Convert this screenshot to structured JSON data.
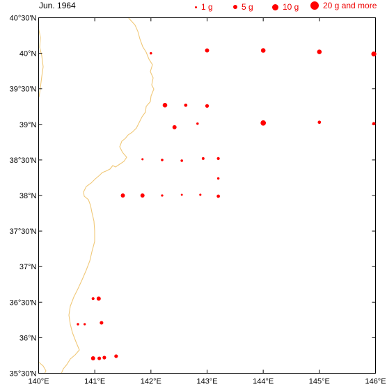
{
  "title": "Jun. 1964",
  "legend": [
    {
      "label": "1 g",
      "value": 1
    },
    {
      "label": "5 g",
      "value": 5
    },
    {
      "label": "10 g",
      "value": 10
    },
    {
      "label": "20 g and more",
      "value": 20
    }
  ],
  "colors": {
    "marker": "#ff0000",
    "coast": "#f0c878",
    "frame": "#000000",
    "legend_text": "#ee0000"
  },
  "chart_data": {
    "type": "scatter",
    "xlim": [
      140,
      146
    ],
    "ylim": [
      35.5,
      40.5
    ],
    "x_ticks": [
      "140°E",
      "141°E",
      "142°E",
      "143°E",
      "144°E",
      "145°E",
      "146°E"
    ],
    "y_ticks": [
      "35°30'N",
      "36°N",
      "36°30'N",
      "37°N",
      "37°30'N",
      "38°N",
      "38°30'N",
      "39°N",
      "39°30'N",
      "40°N",
      "40°30'N"
    ],
    "points": [
      {
        "lon": 142.0,
        "lat": 40.0,
        "value": 0.5
      },
      {
        "lon": 143.0,
        "lat": 40.04,
        "value": 3
      },
      {
        "lon": 144.0,
        "lat": 40.04,
        "value": 4
      },
      {
        "lon": 145.0,
        "lat": 40.02,
        "value": 4
      },
      {
        "lon": 145.97,
        "lat": 39.99,
        "value": 5
      },
      {
        "lon": 142.25,
        "lat": 39.27,
        "value": 4
      },
      {
        "lon": 142.62,
        "lat": 39.27,
        "value": 1.5
      },
      {
        "lon": 143.0,
        "lat": 39.26,
        "value": 2
      },
      {
        "lon": 142.42,
        "lat": 38.96,
        "value": 3
      },
      {
        "lon": 142.83,
        "lat": 39.01,
        "value": 0.5
      },
      {
        "lon": 144.0,
        "lat": 39.02,
        "value": 6
      },
      {
        "lon": 145.0,
        "lat": 39.03,
        "value": 1.5
      },
      {
        "lon": 145.97,
        "lat": 39.01,
        "value": 1.5
      },
      {
        "lon": 141.85,
        "lat": 38.51,
        "value": 0.3
      },
      {
        "lon": 142.2,
        "lat": 38.5,
        "value": 0.6
      },
      {
        "lon": 142.55,
        "lat": 38.49,
        "value": 0.6
      },
      {
        "lon": 142.93,
        "lat": 38.52,
        "value": 0.8
      },
      {
        "lon": 143.2,
        "lat": 38.52,
        "value": 1
      },
      {
        "lon": 143.2,
        "lat": 38.24,
        "value": 0.5
      },
      {
        "lon": 141.5,
        "lat": 38.0,
        "value": 3
      },
      {
        "lon": 141.85,
        "lat": 38.0,
        "value": 3
      },
      {
        "lon": 142.2,
        "lat": 38.0,
        "value": 0.4
      },
      {
        "lon": 142.55,
        "lat": 38.01,
        "value": 0.2
      },
      {
        "lon": 142.88,
        "lat": 38.01,
        "value": 0.3
      },
      {
        "lon": 143.2,
        "lat": 37.99,
        "value": 1.5
      },
      {
        "lon": 140.97,
        "lat": 36.55,
        "value": 1
      },
      {
        "lon": 141.07,
        "lat": 36.55,
        "value": 3
      },
      {
        "lon": 141.12,
        "lat": 36.21,
        "value": 2
      },
      {
        "lon": 140.7,
        "lat": 36.19,
        "value": 0.5
      },
      {
        "lon": 140.82,
        "lat": 36.19,
        "value": 0.4
      },
      {
        "lon": 140.97,
        "lat": 35.71,
        "value": 3
      },
      {
        "lon": 141.08,
        "lat": 35.71,
        "value": 2
      },
      {
        "lon": 141.17,
        "lat": 35.72,
        "value": 2
      },
      {
        "lon": 141.38,
        "lat": 35.74,
        "value": 2
      }
    ]
  }
}
